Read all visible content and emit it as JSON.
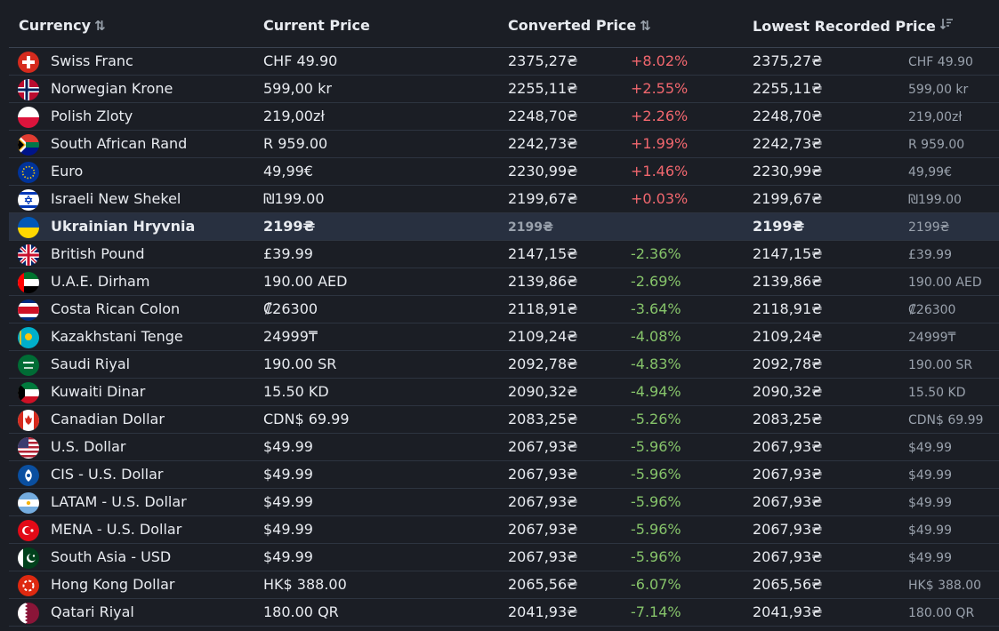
{
  "columns": [
    {
      "label": "Currency",
      "sort_icon": "sort-arrows-icon"
    },
    {
      "label": "Current Price"
    },
    {
      "label": "Converted Price",
      "sort_icon": "sort-arrows-icon"
    },
    {
      "label": "Lowest Recorded Price",
      "sort_icon": "sort-descending-icon"
    }
  ],
  "colors": {
    "increase": "#f1676e",
    "decrease": "#86c46a",
    "background": "#1b1e25",
    "highlight_row": "#283040"
  },
  "rows": [
    {
      "flag": "switzerland-flag-icon",
      "name": "Swiss Franc",
      "price": "CHF 49.90",
      "converted": "2375,27₴",
      "change": "+8.02%",
      "lowest": "2375,27₴",
      "lowest_orig": "CHF 49.90"
    },
    {
      "flag": "norway-flag-icon",
      "name": "Norwegian Krone",
      "price": "599,00 kr",
      "converted": "2255,11₴",
      "change": "+2.55%",
      "lowest": "2255,11₴",
      "lowest_orig": "599,00 kr"
    },
    {
      "flag": "poland-flag-icon",
      "name": "Polish Zloty",
      "price": "219,00zł",
      "converted": "2248,70₴",
      "change": "+2.26%",
      "lowest": "2248,70₴",
      "lowest_orig": "219,00zł"
    },
    {
      "flag": "south-africa-flag-icon",
      "name": "South African Rand",
      "price": "R 959.00",
      "converted": "2242,73₴",
      "change": "+1.99%",
      "lowest": "2242,73₴",
      "lowest_orig": "R 959.00"
    },
    {
      "flag": "eu-flag-icon",
      "name": "Euro",
      "price": "49,99€",
      "converted": "2230,99₴",
      "change": "+1.46%",
      "lowest": "2230,99₴",
      "lowest_orig": "49,99€"
    },
    {
      "flag": "israel-flag-icon",
      "name": "Israeli New Shekel",
      "price": "₪199.00",
      "converted": "2199,67₴",
      "change": "+0.03%",
      "lowest": "2199,67₴",
      "lowest_orig": "₪199.00"
    },
    {
      "flag": "ukraine-flag-icon",
      "name": "Ukrainian Hryvnia",
      "price": "2199₴",
      "converted": "2199₴",
      "change": "",
      "lowest": "2199₴",
      "lowest_orig": "2199₴",
      "highlight": true
    },
    {
      "flag": "uk-flag-icon",
      "name": "British Pound",
      "price": "£39.99",
      "converted": "2147,15₴",
      "change": "-2.36%",
      "lowest": "2147,15₴",
      "lowest_orig": "£39.99"
    },
    {
      "flag": "uae-flag-icon",
      "name": "U.A.E. Dirham",
      "price": "190.00 AED",
      "converted": "2139,86₴",
      "change": "-2.69%",
      "lowest": "2139,86₴",
      "lowest_orig": "190.00 AED"
    },
    {
      "flag": "costa-rica-flag-icon",
      "name": "Costa Rican Colon",
      "price": "₡26300",
      "converted": "2118,91₴",
      "change": "-3.64%",
      "lowest": "2118,91₴",
      "lowest_orig": "₡26300"
    },
    {
      "flag": "kazakhstan-flag-icon",
      "name": "Kazakhstani Tenge",
      "price": "24999₸",
      "converted": "2109,24₴",
      "change": "-4.08%",
      "lowest": "2109,24₴",
      "lowest_orig": "24999₸"
    },
    {
      "flag": "saudi-arabia-flag-icon",
      "name": "Saudi Riyal",
      "price": "190.00 SR",
      "converted": "2092,78₴",
      "change": "-4.83%",
      "lowest": "2092,78₴",
      "lowest_orig": "190.00 SR"
    },
    {
      "flag": "kuwait-flag-icon",
      "name": "Kuwaiti Dinar",
      "price": "15.50 KD",
      "converted": "2090,32₴",
      "change": "-4.94%",
      "lowest": "2090,32₴",
      "lowest_orig": "15.50 KD"
    },
    {
      "flag": "canada-flag-icon",
      "name": "Canadian Dollar",
      "price": "CDN$ 69.99",
      "converted": "2083,25₴",
      "change": "-5.26%",
      "lowest": "2083,25₴",
      "lowest_orig": "CDN$ 69.99"
    },
    {
      "flag": "usa-flag-icon",
      "name": "U.S. Dollar",
      "price": "$49.99",
      "converted": "2067,93₴",
      "change": "-5.96%",
      "lowest": "2067,93₴",
      "lowest_orig": "$49.99"
    },
    {
      "flag": "cis-flag-icon",
      "name": "CIS - U.S. Dollar",
      "price": "$49.99",
      "converted": "2067,93₴",
      "change": "-5.96%",
      "lowest": "2067,93₴",
      "lowest_orig": "$49.99"
    },
    {
      "flag": "argentina-flag-icon",
      "name": "LATAM - U.S. Dollar",
      "price": "$49.99",
      "converted": "2067,93₴",
      "change": "-5.96%",
      "lowest": "2067,93₴",
      "lowest_orig": "$49.99"
    },
    {
      "flag": "turkey-flag-icon",
      "name": "MENA - U.S. Dollar",
      "price": "$49.99",
      "converted": "2067,93₴",
      "change": "-5.96%",
      "lowest": "2067,93₴",
      "lowest_orig": "$49.99"
    },
    {
      "flag": "pakistan-flag-icon",
      "name": "South Asia - USD",
      "price": "$49.99",
      "converted": "2067,93₴",
      "change": "-5.96%",
      "lowest": "2067,93₴",
      "lowest_orig": "$49.99"
    },
    {
      "flag": "hong-kong-flag-icon",
      "name": "Hong Kong Dollar",
      "price": "HK$ 388.00",
      "converted": "2065,56₴",
      "change": "-6.07%",
      "lowest": "2065,56₴",
      "lowest_orig": "HK$ 388.00"
    },
    {
      "flag": "qatar-flag-icon",
      "name": "Qatari Riyal",
      "price": "180.00 QR",
      "converted": "2041,93₴",
      "change": "-7.14%",
      "lowest": "2041,93₴",
      "lowest_orig": "180.00 QR"
    }
  ]
}
